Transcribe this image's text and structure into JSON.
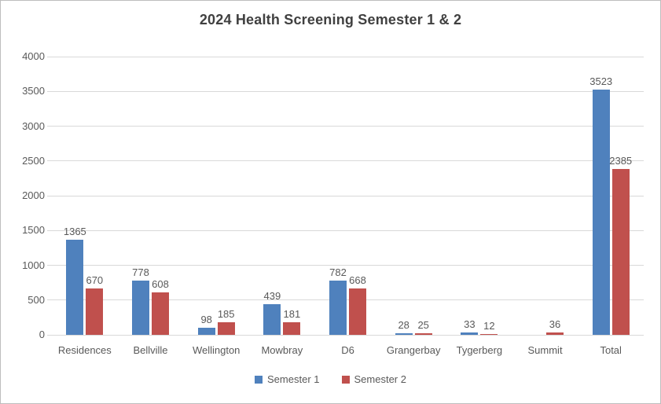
{
  "chart_data": {
    "type": "bar",
    "title": "2024 Health Screening Semester 1 & 2",
    "categories": [
      "Residences",
      "Bellville",
      "Wellington",
      "Mowbray",
      "D6",
      "Grangerbay",
      "Tygerberg",
      "Summit",
      "Total"
    ],
    "series": [
      {
        "name": "Semester 1",
        "color": "#4f81bd",
        "values": [
          1365,
          778,
          98,
          439,
          782,
          28,
          33,
          null,
          3523
        ]
      },
      {
        "name": "Semester 2",
        "color": "#c0504d",
        "values": [
          670,
          608,
          185,
          181,
          668,
          25,
          12,
          36,
          2385
        ]
      }
    ],
    "ylim": [
      0,
      4000
    ],
    "yticks": [
      0,
      500,
      1000,
      1500,
      2000,
      2500,
      3000,
      3500,
      4000
    ],
    "grid": true,
    "legend_position": "bottom",
    "data_labels": true,
    "xlabel": "",
    "ylabel": ""
  },
  "colors": {
    "semester1": "#4f81bd",
    "semester2": "#c0504d",
    "gridline": "#d9d9d9",
    "axis_text": "#595959",
    "title_text": "#404040",
    "frame_border": "#bdbdbd",
    "background": "#ffffff"
  }
}
